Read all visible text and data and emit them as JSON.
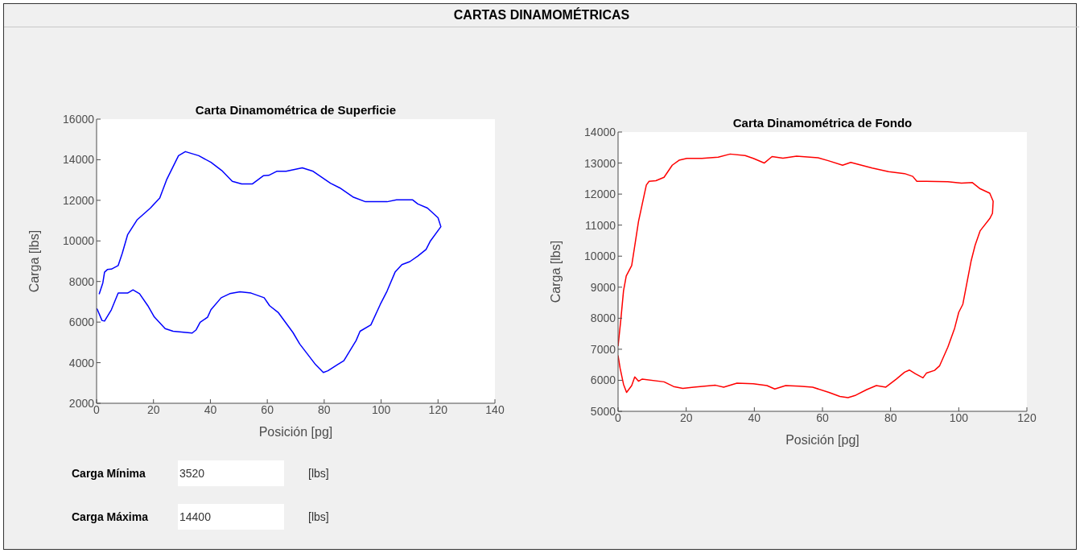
{
  "chart_data": [
    {
      "type": "line",
      "title": "Carta Dinamométrica de Superficie",
      "xlabel": "Posición [pg]",
      "ylabel": "Carga [lbs]",
      "xlim": [
        0,
        140
      ],
      "xticks": [
        0,
        20,
        40,
        60,
        80,
        100,
        120,
        140
      ],
      "ylim": [
        2000,
        16000
      ],
      "yticks": [
        2000,
        4000,
        6000,
        8000,
        10000,
        12000,
        14000,
        16000
      ],
      "series": [
        {
          "color": "#0000ff",
          "x": [
            0.9,
            2.2,
            2.8,
            3.8,
            5.2,
            7.6,
            9.0,
            10.9,
            14.2,
            18.9,
            22.2,
            24.6,
            28.8,
            31.2,
            35.9,
            40.2,
            44.0,
            47.7,
            51.0,
            54.8,
            58.6,
            60.5,
            63.3,
            66.6,
            72.3,
            76.1,
            82.2,
            85.5,
            90.3,
            94.5,
            102.1,
            105.4,
            111.1,
            112.9,
            116.3,
            120.0,
            121.0,
            117.2,
            115.8,
            112.9,
            110.1,
            107.3,
            104.9,
            102.1,
            99.7,
            96.4,
            92.6,
            91.2,
            86.9,
            84.6,
            81.3,
            79.7,
            77.0,
            71.4,
            69.0,
            63.8,
            60.8,
            58.9,
            54.3,
            50.4,
            46.8,
            43.8,
            40.2,
            39.0,
            36.4,
            35.0,
            33.6,
            26.9,
            24.1,
            20.3,
            18.0,
            15.1,
            12.8,
            10.9,
            7.6,
            5.2,
            2.8,
            1.9,
            0.3,
            0
          ],
          "values": [
            7370,
            7930,
            8460,
            8590,
            8610,
            8790,
            9380,
            10300,
            11030,
            11620,
            12110,
            13010,
            14200,
            14400,
            14200,
            13870,
            13470,
            12940,
            12810,
            12810,
            13210,
            13230,
            13430,
            13430,
            13600,
            13430,
            12840,
            12610,
            12150,
            11930,
            11930,
            12020,
            12020,
            11820,
            11620,
            11140,
            10700,
            9970,
            9580,
            9250,
            8980,
            8830,
            8460,
            7530,
            6870,
            5860,
            5550,
            5090,
            4100,
            3900,
            3600,
            3520,
            3900,
            4920,
            5490,
            6480,
            6810,
            7200,
            7430,
            7490,
            7400,
            7200,
            6610,
            6240,
            5990,
            5620,
            5460,
            5550,
            5680,
            6250,
            6810,
            7400,
            7590,
            7430,
            7430,
            6610,
            6050,
            6080,
            6610,
            6670
          ]
        }
      ]
    },
    {
      "type": "line",
      "title": "Carta Dinamométrica de Fondo",
      "xlabel": "Posición [pg]",
      "ylabel": "Carga [lbs]",
      "xlim": [
        0,
        120
      ],
      "xticks": [
        0,
        20,
        40,
        60,
        80,
        100,
        120
      ],
      "ylim": [
        5000,
        14000
      ],
      "yticks": [
        5000,
        6000,
        7000,
        8000,
        9000,
        10000,
        11000,
        12000,
        13000,
        14000
      ],
      "series": [
        {
          "color": "#ff0000",
          "x": [
            0,
            0.8,
            1.6,
            2.4,
            4.0,
            4.8,
            6.0,
            7.1,
            8.3,
            9.1,
            11.1,
            13.5,
            15.9,
            17.9,
            20.2,
            24.6,
            29.4,
            32.9,
            37.3,
            39.7,
            42.9,
            45.2,
            48.4,
            52.4,
            58.7,
            61.9,
            65.9,
            68.3,
            74.6,
            79.4,
            84.1,
            86.5,
            87.7,
            90.5,
            96.8,
            100.8,
            104.0,
            106.3,
            109.1,
            110.1,
            109.9,
            109.1,
            106.3,
            104.8,
            103.6,
            102.4,
            101.2,
            100.0,
            98.8,
            96.8,
            94.4,
            92.9,
            90.5,
            89.5,
            87.3,
            85.5,
            84.1,
            81.7,
            78.6,
            75.8,
            73.0,
            69.8,
            67.5,
            65.1,
            61.9,
            57.1,
            53.2,
            49.2,
            46.0,
            43.7,
            39.7,
            34.9,
            31.0,
            28.6,
            22.2,
            19.0,
            16.3,
            13.5,
            7.1,
            6.0,
            4.9,
            4.0,
            2.5,
            1.6,
            0.6,
            0
          ],
          "values": [
            7100,
            7940,
            8880,
            9360,
            9700,
            10260,
            11120,
            11680,
            12290,
            12410,
            12430,
            12540,
            12930,
            13090,
            13150,
            13150,
            13190,
            13290,
            13240,
            13150,
            13000,
            13210,
            13160,
            13220,
            13170,
            13070,
            12930,
            13020,
            12840,
            12720,
            12660,
            12570,
            12410,
            12410,
            12400,
            12350,
            12370,
            12170,
            12030,
            11770,
            11380,
            11210,
            10820,
            10350,
            9830,
            9140,
            8450,
            8190,
            7680,
            7070,
            6470,
            6320,
            6230,
            6080,
            6210,
            6330,
            6260,
            6040,
            5780,
            5830,
            5700,
            5520,
            5440,
            5480,
            5610,
            5780,
            5810,
            5830,
            5720,
            5830,
            5890,
            5910,
            5780,
            5840,
            5780,
            5740,
            5800,
            5950,
            6040,
            5970,
            6110,
            5830,
            5610,
            5870,
            6390,
            6800
          ]
        }
      ]
    },
    {
      "type": "other",
      "title": "CARTAS DINAMOMÉTRICAS",
      "annotations": [
        "Carga Mínima",
        "3520",
        "[lbs]",
        "Carga Máxima",
        "14400",
        "[lbs]"
      ]
    }
  ]
}
